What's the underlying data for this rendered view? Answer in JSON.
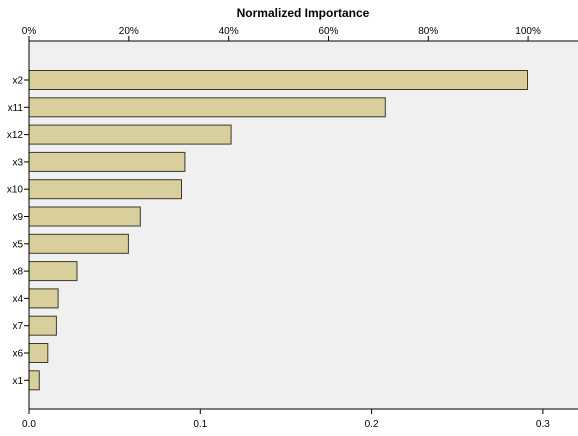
{
  "chart_data": {
    "type": "bar",
    "orientation": "horizontal",
    "title": "Normalized Importance",
    "xlabel": "",
    "ylabel": "",
    "categories": [
      "x2",
      "x11",
      "x12",
      "x3",
      "x10",
      "x9",
      "x5",
      "x8",
      "x4",
      "x7",
      "x6",
      "x1"
    ],
    "values": [
      0.291,
      0.208,
      0.118,
      0.091,
      0.089,
      0.065,
      0.058,
      0.028,
      0.017,
      0.016,
      0.011,
      0.006
    ],
    "xlim": [
      0,
      0.3205
    ],
    "bottom_axis": {
      "ticks": [
        0.0,
        0.1,
        0.2,
        0.3
      ],
      "tick_labels": [
        "0.0",
        "0.1",
        "0.2",
        "0.3"
      ]
    },
    "top_axis": {
      "range_percent": [
        0,
        110
      ],
      "ticks": [
        0,
        20,
        40,
        60,
        80,
        100
      ],
      "tick_labels": [
        "0%",
        "20%",
        "40%",
        "60%",
        "80%",
        "100%"
      ]
    },
    "grid": false,
    "legend": "none",
    "colors": {
      "bar_fill": "#d8cf9c",
      "bar_stroke": "#3a3a2a",
      "plot_background": "#f0f0f0",
      "axis": "#000000"
    }
  }
}
